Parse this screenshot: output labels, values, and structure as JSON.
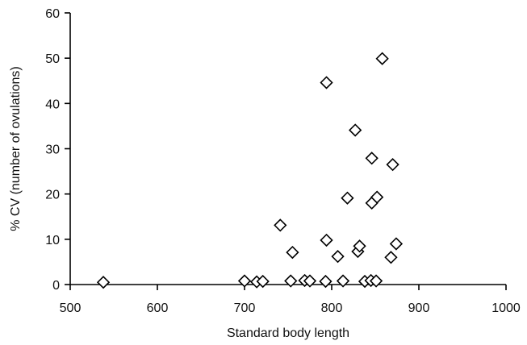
{
  "chart_data": {
    "type": "scatter",
    "title": "",
    "xlabel": "Standard body length",
    "ylabel": "% CV (number of ovulations)",
    "xlim": [
      500,
      1000
    ],
    "ylim": [
      0,
      60
    ],
    "x_ticks": [
      "500",
      "600",
      "700",
      "800",
      "900",
      "1000"
    ],
    "y_ticks": [
      "0",
      "10",
      "20",
      "30",
      "40",
      "50",
      "60"
    ],
    "grid": false,
    "legend": "none",
    "marker": "diamond-open",
    "series": [
      {
        "points": [
          {
            "x": 538,
            "y": 0.5
          },
          {
            "x": 700,
            "y": 0.8
          },
          {
            "x": 714,
            "y": 0.6
          },
          {
            "x": 721,
            "y": 0.7
          },
          {
            "x": 741,
            "y": 13.1
          },
          {
            "x": 753,
            "y": 0.8
          },
          {
            "x": 755,
            "y": 7.1
          },
          {
            "x": 769,
            "y": 0.9
          },
          {
            "x": 775,
            "y": 0.8
          },
          {
            "x": 793,
            "y": 0.7
          },
          {
            "x": 794,
            "y": 9.8
          },
          {
            "x": 794,
            "y": 44.6
          },
          {
            "x": 807,
            "y": 6.2
          },
          {
            "x": 813,
            "y": 0.8
          },
          {
            "x": 818,
            "y": 19.1
          },
          {
            "x": 827,
            "y": 34.1
          },
          {
            "x": 830,
            "y": 7.3
          },
          {
            "x": 832,
            "y": 8.5
          },
          {
            "x": 838,
            "y": 0.7
          },
          {
            "x": 845,
            "y": 0.9
          },
          {
            "x": 846,
            "y": 27.9
          },
          {
            "x": 846,
            "y": 18.0
          },
          {
            "x": 852,
            "y": 19.3
          },
          {
            "x": 851,
            "y": 0.8
          },
          {
            "x": 858,
            "y": 49.9
          },
          {
            "x": 868,
            "y": 6.0
          },
          {
            "x": 870,
            "y": 26.5
          },
          {
            "x": 874,
            "y": 9.0
          }
        ]
      }
    ]
  }
}
